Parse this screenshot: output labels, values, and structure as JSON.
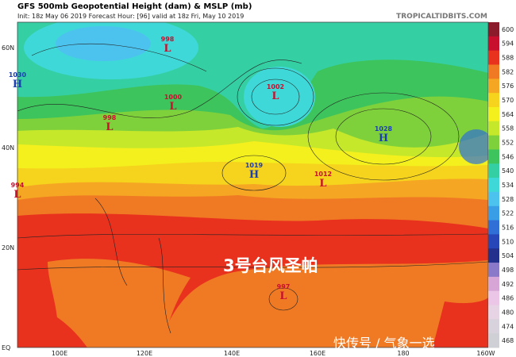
{
  "header": {
    "title": "GFS 500mb Geopotential Height (dam) & MSLP (mb)",
    "init": "Init: 18z May 06 2019   Forecast Hour: [96]   valid at 18z Fri, May 10 2019",
    "site": "TROPICALTIDBITS.COM"
  },
  "lat_labels": [
    "60N",
    "40N",
    "20N",
    "EQ"
  ],
  "lon_labels": [
    "100E",
    "120E",
    "140E",
    "160E",
    "180",
    "160W"
  ],
  "colorbar": [
    {
      "label": "600",
      "color": "#8b1a2b"
    },
    {
      "label": "594",
      "color": "#c8102e"
    },
    {
      "label": "588",
      "color": "#e8321e"
    },
    {
      "label": "582",
      "color": "#f07a24"
    },
    {
      "label": "576",
      "color": "#f5a623"
    },
    {
      "label": "570",
      "color": "#f6d31c"
    },
    {
      "label": "564",
      "color": "#f3f01e"
    },
    {
      "label": "558",
      "color": "#c6e82a"
    },
    {
      "label": "552",
      "color": "#7fd13b"
    },
    {
      "label": "546",
      "color": "#3ec45c"
    },
    {
      "label": "540",
      "color": "#35cfa4"
    },
    {
      "label": "534",
      "color": "#3fd8d8"
    },
    {
      "label": "528",
      "color": "#4cc3ef"
    },
    {
      "label": "522",
      "color": "#3a9ee6"
    },
    {
      "label": "516",
      "color": "#2f6fd6"
    },
    {
      "label": "510",
      "color": "#2747b8"
    },
    {
      "label": "504",
      "color": "#23308c"
    },
    {
      "label": "498",
      "color": "#8a78c8"
    },
    {
      "label": "492",
      "color": "#d7a6d6"
    },
    {
      "label": "486",
      "color": "#ecc6e6"
    },
    {
      "label": "480",
      "color": "#e6d4e4"
    },
    {
      "label": "474",
      "color": "#d8d2dc"
    },
    {
      "label": "468",
      "color": "#cfd0d6"
    }
  ],
  "centers": [
    {
      "value": "998",
      "letter": "L"
    },
    {
      "value": "1030",
      "letter": "H"
    },
    {
      "value": "1000",
      "letter": "L"
    },
    {
      "value": "998",
      "letter": "L"
    },
    {
      "value": "1002",
      "letter": "L"
    },
    {
      "value": "1028",
      "letter": "H"
    },
    {
      "value": "1019",
      "letter": "H"
    },
    {
      "value": "1012",
      "letter": "L"
    },
    {
      "value": "994",
      "letter": "L"
    },
    {
      "value": "997",
      "letter": "L"
    }
  ],
  "overlay": "3号台风圣帕",
  "watermark": "快传号 / 气象一选"
}
